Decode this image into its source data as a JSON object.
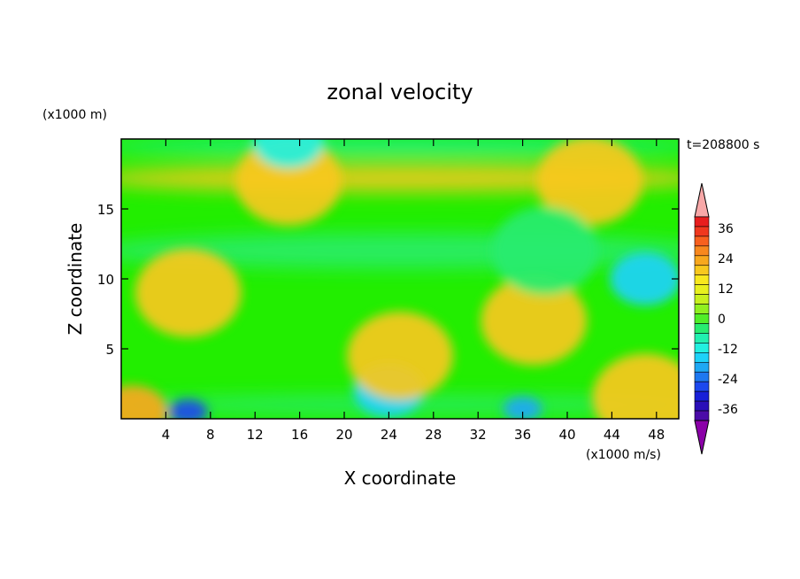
{
  "chart_data": {
    "type": "heatmap",
    "title": "zonal velocity",
    "xlabel": "X coordinate",
    "ylabel": "Z coordinate",
    "x_unit_label": "(x1000 m/s)",
    "y_unit_label": "(x1000 m)",
    "time_label": "t=208800 s",
    "xlim": [
      0,
      50
    ],
    "ylim": [
      0,
      20
    ],
    "x_ticks": [
      4,
      8,
      12,
      16,
      20,
      24,
      28,
      32,
      36,
      40,
      44,
      48
    ],
    "y_ticks": [
      5,
      10,
      15
    ],
    "colorbar": {
      "levels": [
        -42,
        -39,
        -36,
        -33,
        -30,
        -27,
        -24,
        -21,
        -18,
        -15,
        -12,
        -9,
        -6,
        -3,
        0,
        3,
        6,
        9,
        12,
        15,
        18,
        21,
        24,
        27,
        30,
        33,
        36,
        39,
        42
      ],
      "tick_labels": [
        "36",
        "24",
        "12",
        "0",
        "-12",
        "-24",
        "-36"
      ],
      "colors": [
        "#8b00a8",
        "#4b0ca8",
        "#2a0fb8",
        "#1820d8",
        "#1c48ee",
        "#1e78f0",
        "#1ea8f4",
        "#1ed2f8",
        "#22f0e0",
        "#22f0b0",
        "#28ec70",
        "#50ee28",
        "#90f020",
        "#c8f01e",
        "#e8f01e",
        "#f8e81e",
        "#f8c81e",
        "#f8a81e",
        "#f8881e",
        "#f8601e",
        "#f0381e",
        "#e81e1e",
        "#f8a8a8"
      ]
    },
    "field_features": [
      {
        "x": 6,
        "z": 9,
        "value": 9
      },
      {
        "x": 37,
        "z": 7,
        "value": 9
      },
      {
        "x": 47,
        "z": 10,
        "value": -18
      },
      {
        "x": 6,
        "z": 0.5,
        "value": -27
      },
      {
        "x": 36,
        "z": 0.7,
        "value": -21
      },
      {
        "x": 15,
        "z": 17,
        "value": 9
      },
      {
        "x": 42,
        "z": 17,
        "value": 9
      },
      {
        "x": 15,
        "z": 19.8,
        "value": -15
      },
      {
        "x": 38,
        "z": 12,
        "value": -9
      },
      {
        "x": 24,
        "z": 2,
        "value": -18
      },
      {
        "x": 25,
        "z": 4.5,
        "value": 9
      },
      {
        "x": 1,
        "z": 0.5,
        "value": 12
      },
      {
        "x": 47,
        "z": 1.5,
        "value": 9
      }
    ]
  }
}
